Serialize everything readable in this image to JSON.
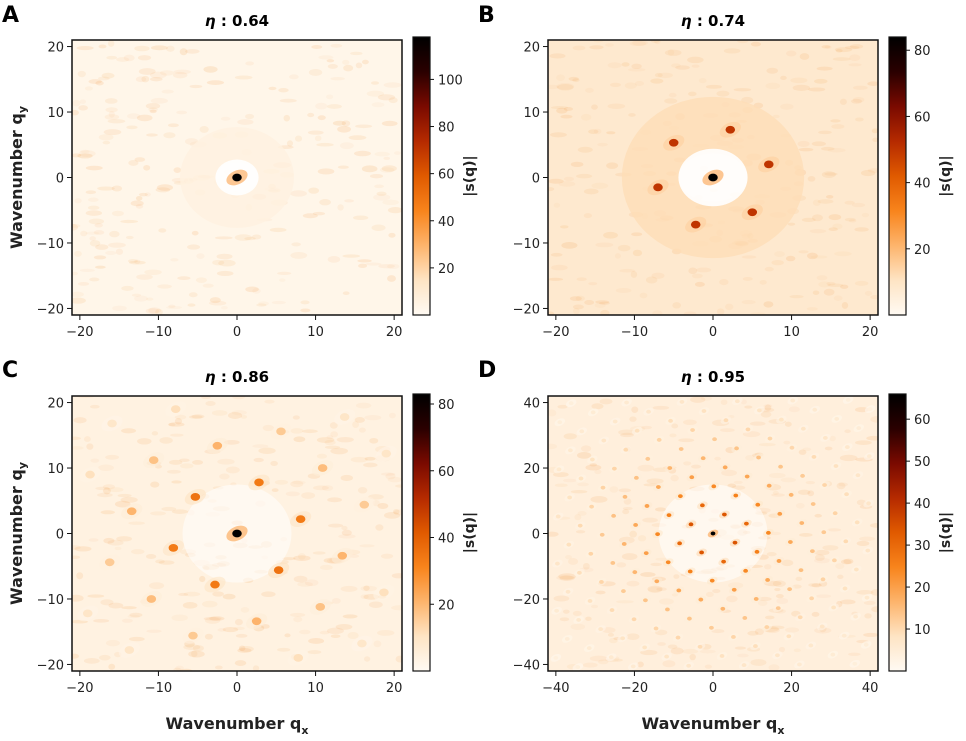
{
  "colormap": [
    "#fffaf3",
    "#fee4c4",
    "#fdb46c",
    "#f8841c",
    "#e05a00",
    "#b52a00",
    "#7a0a00",
    "#2a0000",
    "#000000"
  ],
  "spot_color": "#f0a050",
  "chart_data": [
    {
      "type": "heatmap",
      "panel": "A",
      "title_symbol": "η",
      "title_value": ": 0.64",
      "xlabel": "",
      "ylabel": "Wavenumber q",
      "ylabel_sub": "y",
      "xlim": [
        -21,
        21
      ],
      "ylim": [
        -21,
        21
      ],
      "xticks": [
        -20,
        -10,
        0,
        10,
        20
      ],
      "yticks": [
        -20,
        -10,
        0,
        10,
        20
      ],
      "colorbar_label": "|s(q)|",
      "colorbar_range": [
        0,
        118
      ],
      "colorbar_ticks": [
        20,
        40,
        60,
        80,
        100
      ],
      "ring_radius": 5,
      "ring_intensity": 6,
      "background_intensity": 3,
      "peaks": [
        {
          "qx": 0,
          "qy": 0,
          "value": 118
        }
      ]
    },
    {
      "type": "heatmap",
      "panel": "B",
      "title_symbol": "η",
      "title_value": ": 0.74",
      "xlabel": "",
      "ylabel": "",
      "ylabel_sub": "",
      "xlim": [
        -21,
        21
      ],
      "ylim": [
        -21,
        21
      ],
      "xticks": [
        -20,
        -10,
        0,
        10,
        20
      ],
      "yticks": [
        -20,
        -10,
        0,
        10,
        20
      ],
      "colorbar_label": "|s(q)|",
      "colorbar_range": [
        0,
        84
      ],
      "colorbar_ticks": [
        20,
        40,
        60,
        80
      ],
      "ring_radius": 8,
      "ring_intensity": 12,
      "background_intensity": 8,
      "peaks": [
        {
          "qx": 0,
          "qy": 0,
          "value": 84
        },
        {
          "qx": -5,
          "qy": 5.3,
          "value": 50
        },
        {
          "qx": 2.2,
          "qy": 7.3,
          "value": 50
        },
        {
          "qx": 7.1,
          "qy": 2,
          "value": 50
        },
        {
          "qx": 5,
          "qy": -5.3,
          "value": 50
        },
        {
          "qx": -2.2,
          "qy": -7.2,
          "value": 50
        },
        {
          "qx": -7,
          "qy": -1.5,
          "value": 50
        }
      ]
    },
    {
      "type": "heatmap",
      "panel": "C",
      "title_symbol": "η",
      "title_value": ": 0.86",
      "xlabel": "Wavenumber q",
      "xlabel_sub": "x",
      "ylabel": "Wavenumber q",
      "ylabel_sub": "y",
      "xlim": [
        -21,
        21
      ],
      "ylim": [
        -21,
        21
      ],
      "xticks": [
        -20,
        -10,
        0,
        10,
        20
      ],
      "yticks": [
        -20,
        -10,
        0,
        10,
        20
      ],
      "colorbar_label": "|s(q)|",
      "colorbar_range": [
        0,
        83
      ],
      "colorbar_ticks": [
        20,
        40,
        60,
        80
      ],
      "ring_radius": 0,
      "ring_intensity": 0,
      "background_intensity": 4,
      "lattice": {
        "a": [
          5.3,
          -5.6
        ],
        "b": [
          2.8,
          7.8
        ],
        "range": 3,
        "qmax": 20.5,
        "peak_value": 70,
        "center_value": 83
      }
    },
    {
      "type": "heatmap",
      "panel": "D",
      "title_symbol": "η",
      "title_value": ": 0.95",
      "xlabel": "Wavenumber q",
      "xlabel_sub": "x",
      "ylabel": "",
      "ylabel_sub": "",
      "xlim": [
        -42,
        42
      ],
      "ylim": [
        -42,
        42
      ],
      "xticks": [
        -40,
        -20,
        0,
        20,
        40
      ],
      "yticks": [
        -40,
        -20,
        0,
        20,
        40
      ],
      "colorbar_label": "|s(q)|",
      "colorbar_range": [
        0,
        66
      ],
      "colorbar_ticks": [
        10,
        20,
        30,
        40,
        50,
        60
      ],
      "ring_radius": 0,
      "ring_intensity": 0,
      "background_intensity": 4,
      "lattice": {
        "a": [
          5.6,
          -2.8
        ],
        "b": [
          2.9,
          5.8
        ],
        "range": 8,
        "qmax": 41,
        "peak_value": 45,
        "center_value": 66
      }
    }
  ]
}
